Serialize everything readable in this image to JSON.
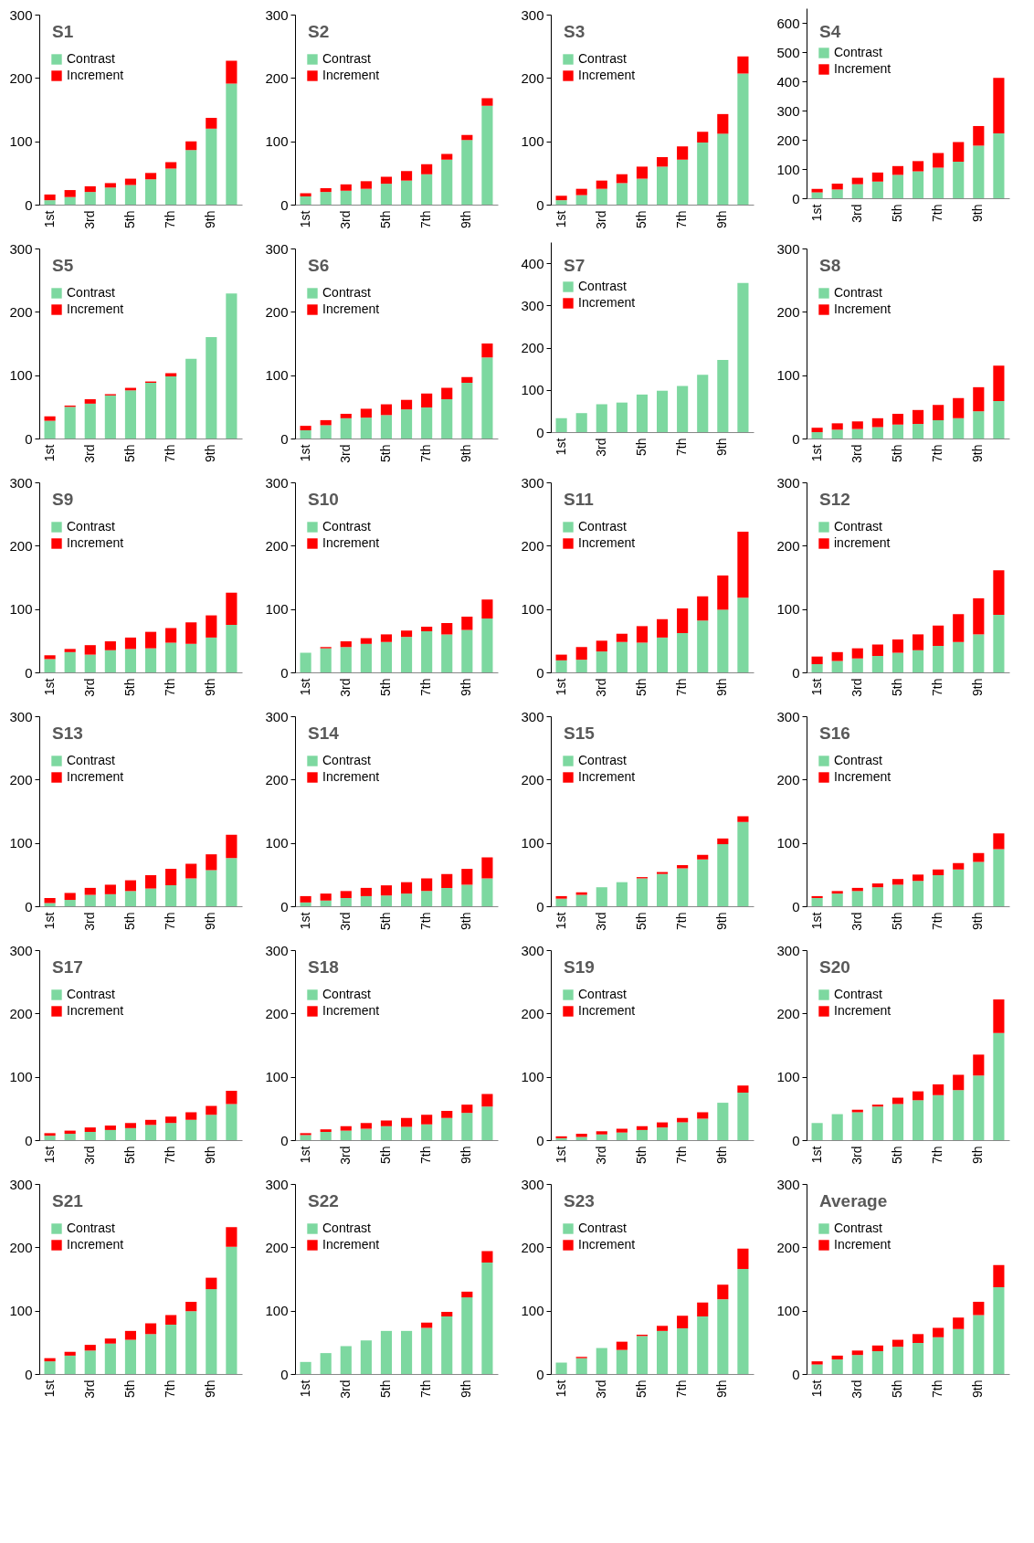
{
  "chart_data": [
    {
      "type": "bar",
      "title": "S1",
      "categories": [
        "1st",
        null,
        "3rd",
        null,
        "5th",
        null,
        "7th",
        null,
        "9th",
        null
      ],
      "stacked": true,
      "ylim": [
        0,
        300
      ],
      "yticks": [
        0,
        100,
        200,
        300
      ],
      "legend": "top left",
      "series": [
        {
          "name": "Contrast",
          "color": "#7dd8a0",
          "values": [
            7,
            12,
            20,
            27,
            31,
            40,
            57,
            86,
            120,
            191
          ]
        },
        {
          "name": "Increment",
          "color": "#ff0000",
          "values": [
            9,
            11,
            9,
            7,
            10,
            10,
            10,
            14,
            17,
            36
          ]
        }
      ]
    },
    {
      "type": "bar",
      "title": "S2",
      "categories": [
        "1st",
        null,
        "3rd",
        null,
        "5th",
        null,
        "7th",
        null,
        "9th",
        null
      ],
      "stacked": true,
      "ylim": [
        0,
        300
      ],
      "yticks": [
        0,
        100,
        200,
        300
      ],
      "legend": "top left",
      "series": [
        {
          "name": "Contrast",
          "color": "#7dd8a0",
          "values": [
            13,
            20,
            22,
            25,
            33,
            38,
            48,
            71,
            102,
            156
          ]
        },
        {
          "name": "Increment",
          "color": "#ff0000",
          "values": [
            5,
            6,
            10,
            12,
            11,
            15,
            16,
            9,
            8,
            12
          ]
        }
      ]
    },
    {
      "type": "bar",
      "title": "S3",
      "categories": [
        "1st",
        null,
        "3rd",
        null,
        "5th",
        null,
        "7th",
        null,
        "9th",
        null
      ],
      "stacked": true,
      "ylim": [
        0,
        300
      ],
      "yticks": [
        0,
        100,
        200,
        300
      ],
      "legend": "top left",
      "series": [
        {
          "name": "Contrast",
          "color": "#7dd8a0",
          "values": [
            7,
            15,
            25,
            34,
            41,
            60,
            71,
            98,
            112,
            207
          ]
        },
        {
          "name": "Increment",
          "color": "#ff0000",
          "values": [
            7,
            10,
            13,
            14,
            19,
            15,
            21,
            17,
            31,
            27
          ]
        }
      ]
    },
    {
      "type": "bar",
      "title": "S4",
      "categories": [
        "1st",
        null,
        "3rd",
        null,
        "5th",
        null,
        "7th",
        null,
        "9th",
        null
      ],
      "stacked": true,
      "ylim": [
        0,
        650
      ],
      "yticks": [
        0,
        100,
        200,
        300,
        400,
        500,
        600
      ],
      "legend": "top left",
      "series": [
        {
          "name": "Contrast",
          "color": "#7dd8a0",
          "values": [
            20,
            30,
            48,
            57,
            80,
            92,
            105,
            125,
            180,
            222
          ]
        },
        {
          "name": "Increment",
          "color": "#ff0000",
          "values": [
            12,
            20,
            22,
            31,
            30,
            35,
            50,
            67,
            67,
            190
          ]
        }
      ]
    },
    {
      "type": "bar",
      "title": "S5",
      "categories": [
        "1st",
        null,
        "3rd",
        null,
        "5th",
        null,
        "7th",
        null,
        "9th",
        null
      ],
      "stacked": true,
      "ylim": [
        0,
        300
      ],
      "yticks": [
        0,
        100,
        200,
        300
      ],
      "legend": "top left",
      "series": [
        {
          "name": "Contrast",
          "color": "#7dd8a0",
          "values": [
            28,
            50,
            55,
            68,
            76,
            88,
            98,
            126,
            160,
            229
          ]
        },
        {
          "name": "Increment",
          "color": "#ff0000",
          "values": [
            7,
            2,
            7,
            2,
            4,
            2,
            5,
            0,
            0,
            0
          ]
        }
      ]
    },
    {
      "type": "bar",
      "title": "S6",
      "categories": [
        "1st",
        null,
        "3rd",
        null,
        "5th",
        null,
        "7th",
        null,
        "9th",
        null
      ],
      "stacked": true,
      "ylim": [
        0,
        300
      ],
      "yticks": [
        0,
        100,
        200,
        300
      ],
      "legend": "top left",
      "series": [
        {
          "name": "Contrast",
          "color": "#7dd8a0",
          "values": [
            13,
            21,
            32,
            33,
            37,
            46,
            49,
            62,
            88,
            128
          ]
        },
        {
          "name": "Increment",
          "color": "#ff0000",
          "values": [
            7,
            8,
            7,
            14,
            17,
            15,
            22,
            18,
            9,
            22
          ]
        }
      ]
    },
    {
      "type": "bar",
      "title": "S7",
      "categories": [
        "1st",
        null,
        "3rd",
        null,
        "5th",
        null,
        "7th",
        null,
        "9th",
        null
      ],
      "stacked": true,
      "ylim": [
        0,
        450
      ],
      "yticks": [
        0,
        100,
        200,
        300,
        400
      ],
      "legend": "top left",
      "series": [
        {
          "name": "Contrast",
          "color": "#7dd8a0",
          "values": [
            33,
            45,
            66,
            70,
            89,
            98,
            109,
            136,
            171,
            353
          ]
        },
        {
          "name": "Increment",
          "color": "#ff0000",
          "values": [
            0,
            0,
            0,
            0,
            0,
            0,
            0,
            0,
            0,
            0
          ]
        }
      ]
    },
    {
      "type": "bar",
      "title": "S8",
      "categories": [
        "1st",
        null,
        "3rd",
        null,
        "5th",
        null,
        "7th",
        null,
        "9th",
        null
      ],
      "stacked": true,
      "ylim": [
        0,
        300
      ],
      "yticks": [
        0,
        100,
        200,
        300
      ],
      "legend": "top left",
      "series": [
        {
          "name": "Contrast",
          "color": "#7dd8a0",
          "values": [
            10,
            14,
            15,
            18,
            22,
            23,
            29,
            32,
            43,
            59
          ]
        },
        {
          "name": "Increment",
          "color": "#ff0000",
          "values": [
            7,
            10,
            12,
            14,
            17,
            22,
            24,
            32,
            38,
            56
          ]
        }
      ]
    },
    {
      "type": "bar",
      "title": "S9",
      "categories": [
        "1st",
        null,
        "3rd",
        null,
        "5th",
        null,
        "7th",
        null,
        "9th",
        null
      ],
      "stacked": true,
      "ylim": [
        0,
        300
      ],
      "yticks": [
        0,
        100,
        200,
        300
      ],
      "legend": "top left",
      "series": [
        {
          "name": "Contrast",
          "color": "#7dd8a0",
          "values": [
            21,
            32,
            28,
            35,
            37,
            38,
            47,
            45,
            55,
            75
          ]
        },
        {
          "name": "Increment",
          "color": "#ff0000",
          "values": [
            6,
            5,
            15,
            14,
            18,
            26,
            23,
            34,
            35,
            51
          ]
        }
      ]
    },
    {
      "type": "bar",
      "title": "S10",
      "categories": [
        "1st",
        null,
        "3rd",
        null,
        "5th",
        null,
        "7th",
        null,
        "9th",
        null
      ],
      "stacked": true,
      "ylim": [
        0,
        300
      ],
      "yticks": [
        0,
        100,
        200,
        300
      ],
      "legend": "top left",
      "series": [
        {
          "name": "Contrast",
          "color": "#7dd8a0",
          "values": [
            31,
            38,
            40,
            45,
            48,
            56,
            65,
            60,
            67,
            85
          ]
        },
        {
          "name": "Increment",
          "color": "#ff0000",
          "values": [
            0,
            2,
            9,
            9,
            12,
            10,
            7,
            18,
            21,
            30
          ]
        }
      ]
    },
    {
      "type": "bar",
      "title": "S11",
      "categories": [
        "1st",
        null,
        "3rd",
        null,
        "5th",
        null,
        "7th",
        null,
        "9th",
        null
      ],
      "stacked": true,
      "ylim": [
        0,
        300
      ],
      "yticks": [
        0,
        100,
        200,
        300
      ],
      "legend": "top left",
      "series": [
        {
          "name": "Contrast",
          "color": "#7dd8a0",
          "values": [
            19,
            20,
            33,
            48,
            47,
            55,
            62,
            82,
            99,
            118
          ]
        },
        {
          "name": "Increment",
          "color": "#ff0000",
          "values": [
            9,
            20,
            17,
            13,
            26,
            29,
            39,
            38,
            54,
            104
          ]
        }
      ]
    },
    {
      "type": "bar",
      "title": "S12",
      "categories": [
        "1st",
        null,
        "3rd",
        null,
        "5th",
        null,
        "7th",
        null,
        "9th",
        null
      ],
      "stacked": true,
      "ylim": [
        0,
        300
      ],
      "yticks": [
        0,
        100,
        200,
        300
      ],
      "legend": "top left",
      "series": [
        {
          "name": "Contrast",
          "color": "#7dd8a0",
          "values": [
            13,
            18,
            22,
            26,
            31,
            35,
            42,
            48,
            60,
            91
          ]
        },
        {
          "name": "increment",
          "color": "#ff0000",
          "values": [
            12,
            14,
            16,
            18,
            21,
            25,
            32,
            44,
            57,
            70
          ]
        }
      ]
    },
    {
      "type": "bar",
      "title": "S13",
      "categories": [
        "1st",
        null,
        "3rd",
        null,
        "5th",
        null,
        "7th",
        null,
        "9th",
        null
      ],
      "stacked": true,
      "ylim": [
        0,
        300
      ],
      "yticks": [
        0,
        100,
        200,
        300
      ],
      "legend": "top left",
      "series": [
        {
          "name": "Contrast",
          "color": "#7dd8a0",
          "values": [
            5,
            10,
            18,
            19,
            24,
            28,
            33,
            44,
            57,
            76
          ]
        },
        {
          "name": "Increment",
          "color": "#ff0000",
          "values": [
            8,
            11,
            11,
            15,
            17,
            21,
            26,
            23,
            25,
            37
          ]
        }
      ]
    },
    {
      "type": "bar",
      "title": "S14",
      "categories": [
        "1st",
        null,
        "3rd",
        null,
        "5th",
        null,
        "7th",
        null,
        "9th",
        null
      ],
      "stacked": true,
      "ylim": [
        0,
        300
      ],
      "yticks": [
        0,
        100,
        200,
        300
      ],
      "legend": "top left",
      "series": [
        {
          "name": "Contrast",
          "color": "#7dd8a0",
          "values": [
            6,
            9,
            13,
            16,
            17,
            20,
            24,
            29,
            34,
            44
          ]
        },
        {
          "name": "Increment",
          "color": "#ff0000",
          "values": [
            10,
            11,
            11,
            13,
            16,
            18,
            20,
            22,
            25,
            33
          ]
        }
      ]
    },
    {
      "type": "bar",
      "title": "S15",
      "categories": [
        "1st",
        null,
        "3rd",
        null,
        "5th",
        null,
        "7th",
        null,
        "9th",
        null
      ],
      "stacked": true,
      "ylim": [
        0,
        300
      ],
      "yticks": [
        0,
        100,
        200,
        300
      ],
      "legend": "top left",
      "series": [
        {
          "name": "Contrast",
          "color": "#7dd8a0",
          "values": [
            12,
            18,
            30,
            38,
            44,
            51,
            60,
            74,
            98,
            133
          ]
        },
        {
          "name": "Increment",
          "color": "#ff0000",
          "values": [
            4,
            4,
            0,
            0,
            2,
            3,
            5,
            7,
            9,
            9
          ]
        }
      ]
    },
    {
      "type": "bar",
      "title": "S16",
      "categories": [
        "1st",
        null,
        "3rd",
        null,
        "5th",
        null,
        "7th",
        null,
        "9th",
        null
      ],
      "stacked": true,
      "ylim": [
        0,
        300
      ],
      "yticks": [
        0,
        100,
        200,
        300
      ],
      "legend": "top left",
      "series": [
        {
          "name": "Contrast",
          "color": "#7dd8a0",
          "values": [
            13,
            20,
            24,
            30,
            34,
            40,
            49,
            58,
            70,
            90
          ]
        },
        {
          "name": "Increment",
          "color": "#ff0000",
          "values": [
            3,
            4,
            5,
            6,
            9,
            10,
            9,
            10,
            14,
            25
          ]
        }
      ]
    },
    {
      "type": "bar",
      "title": "S17",
      "categories": [
        "1st",
        null,
        "3rd",
        null,
        "5th",
        null,
        "7th",
        null,
        "9th",
        null
      ],
      "stacked": true,
      "ylim": [
        0,
        300
      ],
      "yticks": [
        0,
        100,
        200,
        300
      ],
      "legend": "top left",
      "series": [
        {
          "name": "Contrast",
          "color": "#7dd8a0",
          "values": [
            7,
            10,
            13,
            16,
            19,
            24,
            27,
            32,
            40,
            57
          ]
        },
        {
          "name": "Increment",
          "color": "#ff0000",
          "values": [
            4,
            5,
            7,
            7,
            8,
            8,
            10,
            12,
            14,
            21
          ]
        }
      ]
    },
    {
      "type": "bar",
      "title": "S18",
      "categories": [
        "1st",
        null,
        "3rd",
        null,
        "5th",
        null,
        "7th",
        null,
        "9th",
        null
      ],
      "stacked": true,
      "ylim": [
        0,
        300
      ],
      "yticks": [
        0,
        100,
        200,
        300
      ],
      "legend": "top left",
      "series": [
        {
          "name": "Contrast",
          "color": "#7dd8a0",
          "values": [
            8,
            13,
            15,
            18,
            22,
            21,
            25,
            35,
            43,
            53
          ]
        },
        {
          "name": "Increment",
          "color": "#ff0000",
          "values": [
            3,
            4,
            7,
            9,
            9,
            14,
            15,
            11,
            13,
            20
          ]
        }
      ]
    },
    {
      "type": "bar",
      "title": "S19",
      "categories": [
        "1st",
        null,
        "3rd",
        null,
        "5th",
        null,
        "7th",
        null,
        "9th",
        null
      ],
      "stacked": true,
      "ylim": [
        0,
        300
      ],
      "yticks": [
        0,
        100,
        200,
        300
      ],
      "legend": "top left",
      "series": [
        {
          "name": "Contrast",
          "color": "#7dd8a0",
          "values": [
            3,
            5,
            9,
            12,
            16,
            20,
            28,
            34,
            59,
            75
          ]
        },
        {
          "name": "Increment",
          "color": "#ff0000",
          "values": [
            3,
            5,
            5,
            6,
            6,
            8,
            7,
            10,
            0,
            11
          ]
        }
      ]
    },
    {
      "type": "bar",
      "title": "S20",
      "categories": [
        "1st",
        null,
        "3rd",
        null,
        "5th",
        null,
        "7th",
        null,
        "9th",
        null
      ],
      "stacked": true,
      "ylim": [
        0,
        300
      ],
      "yticks": [
        0,
        100,
        200,
        300
      ],
      "legend": "top left",
      "series": [
        {
          "name": "Contrast",
          "color": "#7dd8a0",
          "values": [
            27,
            41,
            44,
            53,
            57,
            63,
            71,
            79,
            102,
            169
          ]
        },
        {
          "name": "Increment",
          "color": "#ff0000",
          "values": [
            0,
            0,
            4,
            3,
            10,
            14,
            17,
            24,
            33,
            53
          ]
        }
      ]
    },
    {
      "type": "bar",
      "title": "S21",
      "categories": [
        "1st",
        null,
        "3rd",
        null,
        "5th",
        null,
        "7th",
        null,
        "9th",
        null
      ],
      "stacked": true,
      "ylim": [
        0,
        300
      ],
      "yticks": [
        0,
        100,
        200,
        300
      ],
      "legend": "top left",
      "series": [
        {
          "name": "Contrast",
          "color": "#7dd8a0",
          "values": [
            20,
            29,
            37,
            48,
            54,
            63,
            78,
            99,
            134,
            201
          ]
        },
        {
          "name": "Increment",
          "color": "#ff0000",
          "values": [
            5,
            6,
            9,
            8,
            14,
            17,
            15,
            15,
            18,
            31
          ]
        }
      ]
    },
    {
      "type": "bar",
      "title": "S22",
      "categories": [
        "1st",
        null,
        "3rd",
        null,
        "5th",
        null,
        "7th",
        null,
        "9th",
        null
      ],
      "stacked": true,
      "ylim": [
        0,
        300
      ],
      "yticks": [
        0,
        100,
        200,
        300
      ],
      "legend": "top left",
      "series": [
        {
          "name": "Contrast",
          "color": "#7dd8a0",
          "values": [
            19,
            33,
            44,
            53,
            68,
            68,
            73,
            91,
            121,
            176
          ]
        },
        {
          "name": "Increment",
          "color": "#ff0000",
          "values": [
            0,
            0,
            0,
            0,
            0,
            0,
            8,
            7,
            9,
            18
          ]
        }
      ]
    },
    {
      "type": "bar",
      "title": "S23",
      "categories": [
        "1st",
        null,
        "3rd",
        null,
        "5th",
        null,
        "7th",
        null,
        "9th",
        null
      ],
      "stacked": true,
      "ylim": [
        0,
        300
      ],
      "yticks": [
        0,
        100,
        200,
        300
      ],
      "legend": "top left",
      "series": [
        {
          "name": "Contrast",
          "color": "#7dd8a0",
          "values": [
            18,
            25,
            41,
            38,
            60,
            68,
            72,
            91,
            118,
            166
          ]
        },
        {
          "name": "Increment",
          "color": "#ff0000",
          "values": [
            0,
            2,
            0,
            13,
            2,
            8,
            20,
            22,
            23,
            32
          ]
        }
      ]
    },
    {
      "type": "bar",
      "title": "Average",
      "categories": [
        "1st",
        null,
        "3rd",
        null,
        "5th",
        null,
        "7th",
        null,
        "9th",
        null
      ],
      "stacked": true,
      "ylim": [
        0,
        300
      ],
      "yticks": [
        0,
        100,
        200,
        300
      ],
      "legend": "top left",
      "series": [
        {
          "name": "Contrast",
          "color": "#7dd8a0",
          "values": [
            15,
            23,
            30,
            36,
            43,
            49,
            58,
            71,
            93,
            137
          ]
        },
        {
          "name": "Increment",
          "color": "#ff0000",
          "values": [
            5,
            6,
            7,
            9,
            11,
            14,
            15,
            18,
            21,
            35
          ]
        }
      ]
    }
  ]
}
